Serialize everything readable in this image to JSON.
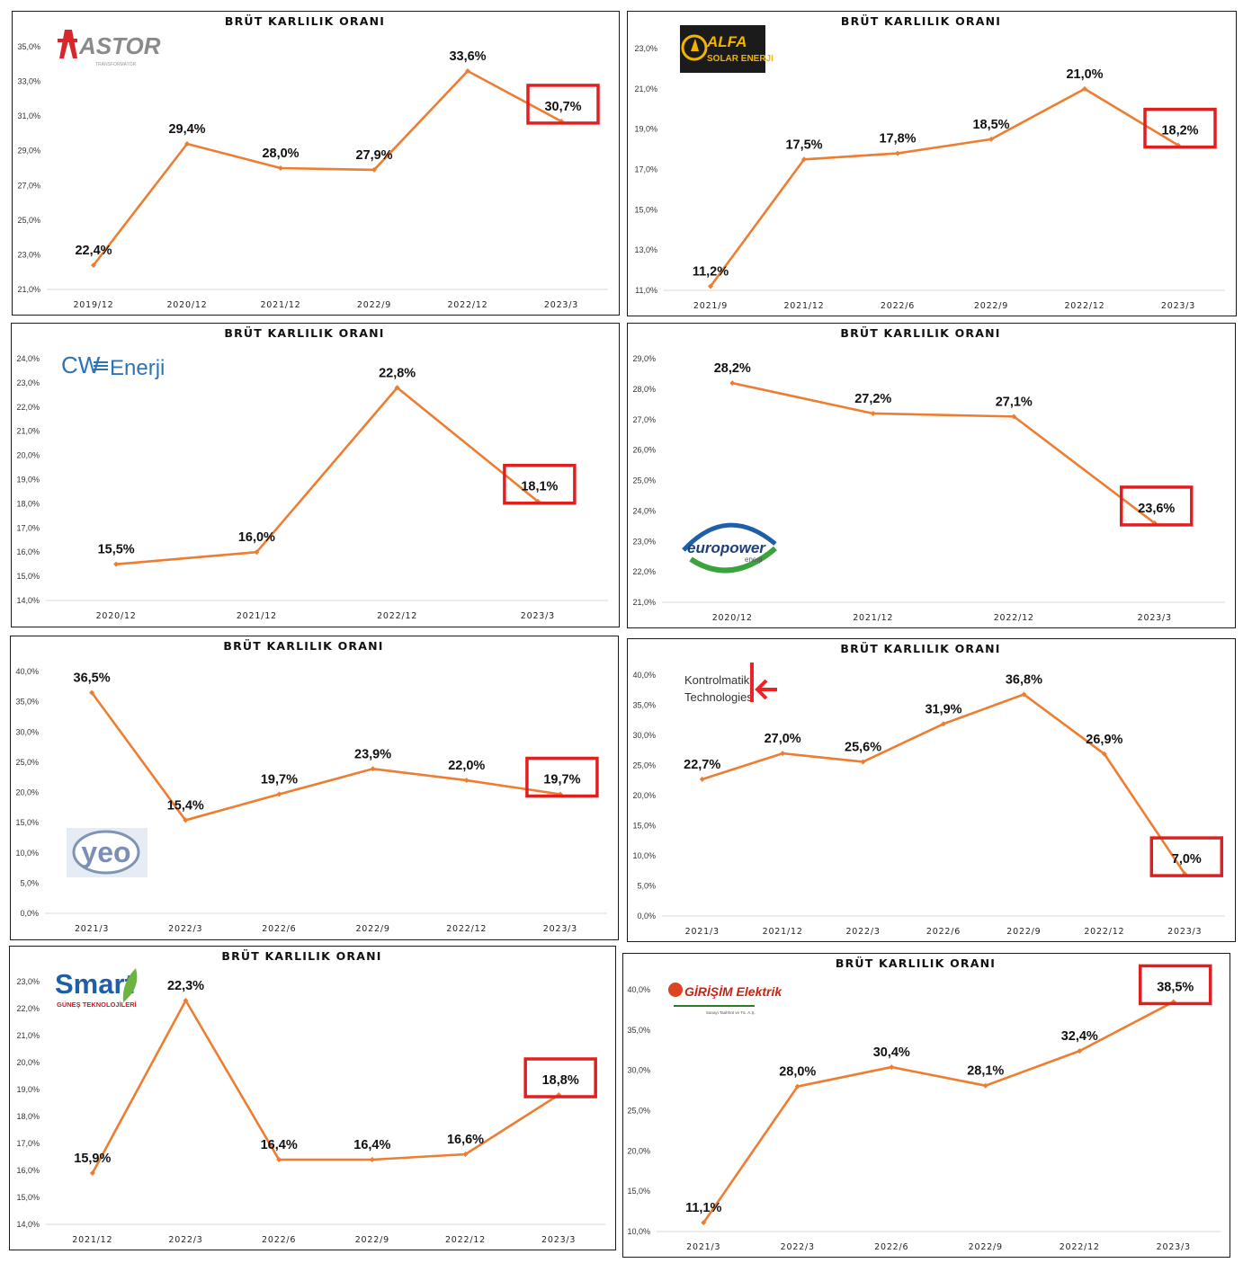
{
  "colors": {
    "line": "#ed7d31",
    "highlight": "#e02020",
    "frame": "#1a1a1a",
    "axis": "#d9d9d9"
  },
  "chart_data": [
    {
      "type": "line",
      "title": "BRÜT KARLILIK ORANI",
      "logo": {
        "name": "astor-logo",
        "text": "ASTOR",
        "subtext": "TRANSFORMATÖR"
      },
      "x": [
        "2019/12",
        "2020/12",
        "2021/12",
        "2022/9",
        "2022/12",
        "2023/3"
      ],
      "values": [
        22.4,
        29.4,
        28.0,
        27.9,
        33.6,
        30.7
      ],
      "labels": [
        "22,4%",
        "29,4%",
        "28,0%",
        "27,9%",
        "33,6%",
        "30,7%"
      ],
      "highlight": [
        5
      ],
      "ylim": [
        21,
        35
      ],
      "yticks": [
        "21,0%",
        "23,0%",
        "25,0%",
        "27,0%",
        "29,0%",
        "31,0%",
        "33,0%",
        "35,0%"
      ]
    },
    {
      "type": "line",
      "title": "BRÜT KARLILIK ORANI",
      "logo": {
        "name": "alfa-solar-logo",
        "text": "ALFA",
        "subtext": "SOLAR ENERJI"
      },
      "x": [
        "2021/9",
        "2021/12",
        "2022/6",
        "2022/9",
        "2022/12",
        "2023/3"
      ],
      "values": [
        11.2,
        17.5,
        17.8,
        18.5,
        21.0,
        18.2
      ],
      "labels": [
        "11,2%",
        "17,5%",
        "17,8%",
        "18,5%",
        "21,0%",
        "18,2%"
      ],
      "highlight": [
        5
      ],
      "ylim": [
        11,
        23
      ],
      "yticks": [
        "11,0%",
        "13,0%",
        "15,0%",
        "17,0%",
        "19,0%",
        "21,0%",
        "23,0%"
      ]
    },
    {
      "type": "line",
      "title": "BRÜT KARLILIK ORANI",
      "logo": {
        "name": "cw-enerji-logo",
        "text": "CW",
        "subtext": "Enerji"
      },
      "x": [
        "2020/12",
        "2021/12",
        "2022/12",
        "2023/3"
      ],
      "values": [
        15.5,
        16.0,
        22.8,
        18.1
      ],
      "labels": [
        "15,5%",
        "16,0%",
        "22,8%",
        "18,1%"
      ],
      "highlight": [
        3
      ],
      "ylim": [
        14,
        24
      ],
      "yticks": [
        "14,0%",
        "15,0%",
        "16,0%",
        "17,0%",
        "18,0%",
        "19,0%",
        "20,0%",
        "21,0%",
        "22,0%",
        "23,0%",
        "24,0%"
      ]
    },
    {
      "type": "line",
      "title": "BRÜT KARLILIK ORANI",
      "logo": {
        "name": "europower-logo",
        "text": "europower",
        "subtext": "enerji"
      },
      "x": [
        "2020/12",
        "2021/12",
        "2022/12",
        "2023/3"
      ],
      "values": [
        28.2,
        27.2,
        27.1,
        23.6
      ],
      "labels": [
        "28,2%",
        "27,2%",
        "27,1%",
        "23,6%"
      ],
      "highlight": [
        3
      ],
      "ylim": [
        21,
        29
      ],
      "yticks": [
        "21,0%",
        "22,0%",
        "23,0%",
        "24,0%",
        "25,0%",
        "26,0%",
        "27,0%",
        "28,0%",
        "29,0%"
      ]
    },
    {
      "type": "line",
      "title": "BRÜT KARLILIK ORANI",
      "logo": {
        "name": "yeo-logo",
        "text": "yeo",
        "subtext": ""
      },
      "x": [
        "2021/3",
        "2022/3",
        "2022/6",
        "2022/9",
        "2022/12",
        "2023/3"
      ],
      "values": [
        36.5,
        15.4,
        19.7,
        23.9,
        22.0,
        19.7
      ],
      "labels": [
        "36,5%",
        "15,4%",
        "19,7%",
        "23,9%",
        "22,0%",
        "19,7%"
      ],
      "highlight": [
        5
      ],
      "ylim": [
        0,
        40
      ],
      "yticks": [
        "0,0%",
        "5,0%",
        "10,0%",
        "15,0%",
        "20,0%",
        "25,0%",
        "30,0%",
        "35,0%",
        "40,0%"
      ]
    },
    {
      "type": "line",
      "title": "BRÜT KARLILIK ORANI",
      "logo": {
        "name": "kontrolmatik-logo",
        "text": "Kontrolmatik",
        "subtext": "Technologies"
      },
      "x": [
        "2021/3",
        "2021/12",
        "2022/3",
        "2022/6",
        "2022/9",
        "2022/12",
        "2023/3"
      ],
      "values": [
        22.7,
        27.0,
        25.6,
        31.9,
        36.8,
        26.9,
        7.0
      ],
      "labels": [
        "22,7%",
        "27,0%",
        "25,6%",
        "31,9%",
        "36,8%",
        "26,9%",
        "7,0%"
      ],
      "highlight": [
        6
      ],
      "ylim": [
        0,
        40
      ],
      "yticks": [
        "0,0%",
        "5,0%",
        "10,0%",
        "15,0%",
        "20,0%",
        "25,0%",
        "30,0%",
        "35,0%",
        "40,0%"
      ]
    },
    {
      "type": "line",
      "title": "BRÜT KARLILIK ORANI",
      "logo": {
        "name": "smart-logo",
        "text": "Smart",
        "subtext": "GÜNEŞ TEKNOLOJİLERİ"
      },
      "x": [
        "2021/12",
        "2022/3",
        "2022/6",
        "2022/9",
        "2022/12",
        "2023/3"
      ],
      "values": [
        15.9,
        22.3,
        16.4,
        16.4,
        16.6,
        18.8
      ],
      "labels": [
        "15,9%",
        "22,3%",
        "16,4%",
        "16,4%",
        "16,6%",
        "18,8%"
      ],
      "highlight": [
        5
      ],
      "ylim": [
        14,
        23
      ],
      "yticks": [
        "14,0%",
        "15,0%",
        "16,0%",
        "17,0%",
        "18,0%",
        "19,0%",
        "20,0%",
        "21,0%",
        "22,0%",
        "23,0%"
      ]
    },
    {
      "type": "line",
      "title": "BRÜT KARLILIK ORANI",
      "logo": {
        "name": "girisim-logo",
        "text": "GİRİŞİM Elektrik",
        "subtext": "Sanayi Taahhüt ve Tic. A.Ş."
      },
      "x": [
        "2021/3",
        "2022/3",
        "2022/6",
        "2022/9",
        "2022/12",
        "2023/3"
      ],
      "values": [
        11.1,
        28.0,
        30.4,
        28.1,
        32.4,
        38.5
      ],
      "labels": [
        "11,1%",
        "28,0%",
        "30,4%",
        "28,1%",
        "32,4%",
        "38,5%"
      ],
      "highlight": [
        5
      ],
      "ylim": [
        10,
        40
      ],
      "yticks": [
        "10,0%",
        "15,0%",
        "20,0%",
        "25,0%",
        "30,0%",
        "35,0%",
        "40,0%"
      ]
    }
  ]
}
